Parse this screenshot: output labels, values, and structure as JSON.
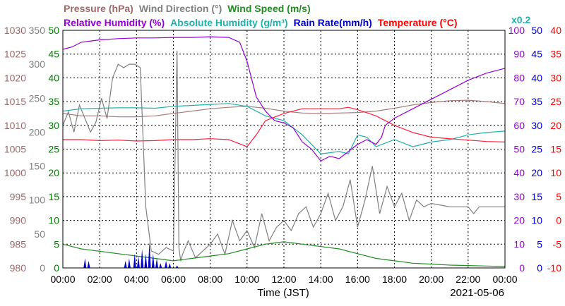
{
  "header": {
    "line1": [
      {
        "text": "Pressure (hPa)",
        "color": "#9c6a6a"
      },
      {
        "text": "Wind Direction (°)",
        "color": "#808080"
      },
      {
        "text": "Wind Speed (m/s)",
        "color": "#228b22"
      }
    ],
    "line2": [
      {
        "text": "Relative Humidity (%)",
        "color": "#9400d3"
      },
      {
        "text": "Absolute Humidity (g/m³)",
        "color": "#20b2aa"
      },
      {
        "text": "Rain Rate(mm/h)",
        "color": "#0000cd"
      },
      {
        "text": "Temperature (°C)",
        "color": "#ff0000"
      }
    ],
    "rain_scale": {
      "text": "x0.2",
      "color": "#20b2aa"
    }
  },
  "footer": {
    "xlabel": "Time (JST)",
    "date": "2021-05-06"
  },
  "chart_data": {
    "type": "line",
    "x_ticks": [
      "00:00",
      "02:00",
      "04:00",
      "06:00",
      "08:00",
      "10:00",
      "12:00",
      "14:00",
      "16:00",
      "18:00",
      "20:00",
      "22:00",
      "00:00"
    ],
    "xlim_hours": [
      0,
      24
    ],
    "axes": {
      "pressure": {
        "ticks": [
          "1030",
          "1025",
          "1020",
          "1015",
          "1010",
          "1005",
          "1000",
          "995",
          "990",
          "985",
          "980"
        ],
        "min": 980,
        "max": 1030,
        "color": "#9c6a6a"
      },
      "wind_direction": {
        "ticks": [
          "350",
          "300",
          "250",
          "200",
          "150",
          "100",
          "50",
          "0"
        ],
        "min": 0,
        "max": 350,
        "color": "#808080"
      },
      "wind_speed": {
        "ticks": [
          "50",
          "45",
          "40",
          "35",
          "30",
          "25",
          "20",
          "15",
          "10",
          "5",
          "0"
        ],
        "min": 0,
        "max": 50,
        "color": "#008000"
      },
      "humidity": {
        "ticks": [
          "100",
          "90",
          "80",
          "70",
          "60",
          "50",
          "40",
          "30",
          "20",
          "10",
          "0"
        ],
        "min": 0,
        "max": 100,
        "color": "#9400d3"
      },
      "rain": {
        "ticks": [
          "50",
          "45",
          "40",
          "35",
          "30",
          "25",
          "20",
          "15",
          "10",
          "5",
          "0"
        ],
        "min": 0,
        "max": 50,
        "color": "#0000cd"
      },
      "temperature": {
        "ticks": [
          "40",
          "35",
          "30",
          "25",
          "20",
          "15",
          "10",
          "5",
          "0",
          "-5",
          "-10"
        ],
        "min": -10,
        "max": 40,
        "color": "#ff0000"
      }
    },
    "grid": true,
    "series": [
      {
        "name": "Pressure (hPa)",
        "axis": "pressure",
        "color": "#a87a7a",
        "x": [
          0,
          1,
          2,
          3,
          4,
          5,
          6,
          7,
          8,
          9,
          10,
          11,
          12,
          13,
          14,
          15,
          16,
          17,
          18,
          19,
          20,
          21,
          22,
          23,
          24
        ],
        "y": [
          1012.5,
          1012,
          1012,
          1011.8,
          1011.8,
          1012,
          1012.5,
          1013,
          1013.5,
          1013.8,
          1014,
          1013.6,
          1013,
          1012.6,
          1012.5,
          1012.6,
          1012.7,
          1013,
          1013.6,
          1014.3,
          1014.8,
          1015.2,
          1015.3,
          1015,
          1014.6
        ]
      },
      {
        "name": "Absolute Humidity (g/m³)",
        "axis": "rain",
        "color": "#20b2aa",
        "x": [
          0,
          1,
          2,
          3,
          4,
          5,
          6,
          7,
          8,
          9,
          10,
          11,
          12,
          13,
          14,
          15,
          15.5,
          16,
          16.5,
          17,
          18,
          19,
          20,
          21,
          22,
          23,
          24
        ],
        "y": [
          33,
          33.5,
          33.6,
          33.7,
          33.7,
          33.6,
          34,
          34.2,
          34.4,
          34.6,
          34,
          32,
          31,
          28,
          24,
          24.5,
          24,
          28,
          27.5,
          25.5,
          27,
          25.5,
          26.5,
          27,
          28,
          28.5,
          28.8
        ]
      },
      {
        "name": "Temperature (°C)",
        "axis": "temperature",
        "color": "#ff1e3c",
        "x": [
          0,
          1,
          2,
          3,
          4,
          5,
          6,
          7,
          8,
          9,
          10,
          10.5,
          11,
          12,
          13,
          14,
          15,
          15.5,
          16,
          17,
          18,
          19,
          20,
          21,
          22,
          23,
          24
        ],
        "y": [
          17,
          17,
          16.8,
          16.9,
          16.7,
          16.8,
          17,
          17,
          17.2,
          17,
          15.5,
          18,
          21,
          22.5,
          23.5,
          23.5,
          23.5,
          23.8,
          23.3,
          22,
          20,
          18.5,
          17.5,
          17.2,
          16.9,
          16.6,
          16.5
        ]
      },
      {
        "name": "Relative Humidity (%)",
        "axis": "humidity",
        "color": "#9400d3",
        "x": [
          0,
          0.5,
          1,
          2,
          3,
          4,
          5,
          6,
          7,
          8,
          9,
          9.6,
          10,
          10.5,
          11,
          11.5,
          12,
          12.5,
          13,
          13.5,
          14,
          14.5,
          15,
          15.5,
          16,
          16.5,
          17,
          17.3,
          17.5,
          18,
          19,
          20,
          21,
          22,
          23,
          24
        ],
        "y": [
          92,
          93,
          95,
          96,
          96.5,
          96.8,
          96.8,
          97,
          97,
          97.3,
          97,
          95,
          87,
          72,
          66,
          62,
          61,
          59,
          53,
          50,
          45,
          47,
          46,
          49,
          52,
          54,
          52,
          55,
          60,
          63,
          67,
          71,
          75,
          79,
          82,
          84
        ]
      },
      {
        "name": "Wind Direction (°)",
        "axis": "wind_direction",
        "color": "#808080",
        "x": [
          0,
          0.3,
          0.6,
          0.9,
          1.2,
          1.5,
          1.8,
          2.1,
          2.4,
          2.7,
          3,
          3.3,
          3.6,
          3.9,
          4.2,
          4.5,
          4.8,
          5.2,
          5.6,
          6,
          6.2,
          6.3,
          6.4,
          6.5,
          6.8,
          7.2,
          7.6,
          8,
          8.4,
          8.8,
          9.2,
          9.6,
          10,
          10.4,
          10.8,
          11.2,
          11.6,
          12,
          12.4,
          12.8,
          13.2,
          13.6,
          14,
          14.4,
          14.8,
          15.2,
          15.6,
          16,
          16.4,
          16.8,
          17.2,
          17.6,
          18,
          18.4,
          18.8,
          19.2,
          19.6,
          20,
          21,
          22,
          22.3,
          22.6,
          23,
          24
        ],
        "y": [
          210,
          230,
          200,
          240,
          220,
          200,
          215,
          250,
          220,
          280,
          300,
          295,
          300,
          300,
          295,
          90,
          25,
          20,
          30,
          25,
          320,
          30,
          10,
          20,
          40,
          15,
          25,
          35,
          50,
          20,
          70,
          40,
          55,
          30,
          80,
          40,
          60,
          70,
          55,
          80,
          90,
          60,
          80,
          110,
          70,
          90,
          130,
          60,
          100,
          150,
          80,
          120,
          90,
          110,
          70,
          100,
          90,
          95,
          90,
          90,
          80,
          90,
          90,
          90
        ]
      },
      {
        "name": "Wind Speed (m/s)",
        "axis": "wind_speed",
        "color": "#228b22",
        "x": [
          0,
          1,
          2,
          3,
          4,
          5,
          6,
          7,
          8,
          9,
          10,
          11,
          12,
          13,
          14,
          15,
          16,
          17,
          18,
          19,
          20,
          21,
          22,
          23,
          24
        ],
        "y": [
          5,
          4,
          3.5,
          3,
          2.5,
          2,
          1.5,
          2,
          2.5,
          3,
          4,
          5,
          5.5,
          5,
          4.5,
          4,
          3,
          2,
          1.5,
          1,
          0.8,
          0.6,
          0.5,
          0.4,
          0.3
        ]
      },
      {
        "name": "Rain Rate(mm/h)",
        "axis": "rain",
        "color": "#0000cd",
        "x": [
          1.2,
          1.4,
          3.4,
          3.6,
          3.9,
          4.1,
          4.3,
          4.5,
          4.7,
          4.9,
          5.1,
          5.3,
          5.6,
          5.8,
          6.2
        ],
        "y": [
          2,
          1.5,
          1.5,
          2,
          3,
          2.5,
          4,
          3,
          5.5,
          3,
          2,
          1,
          1.5,
          1,
          0.5
        ]
      }
    ]
  }
}
